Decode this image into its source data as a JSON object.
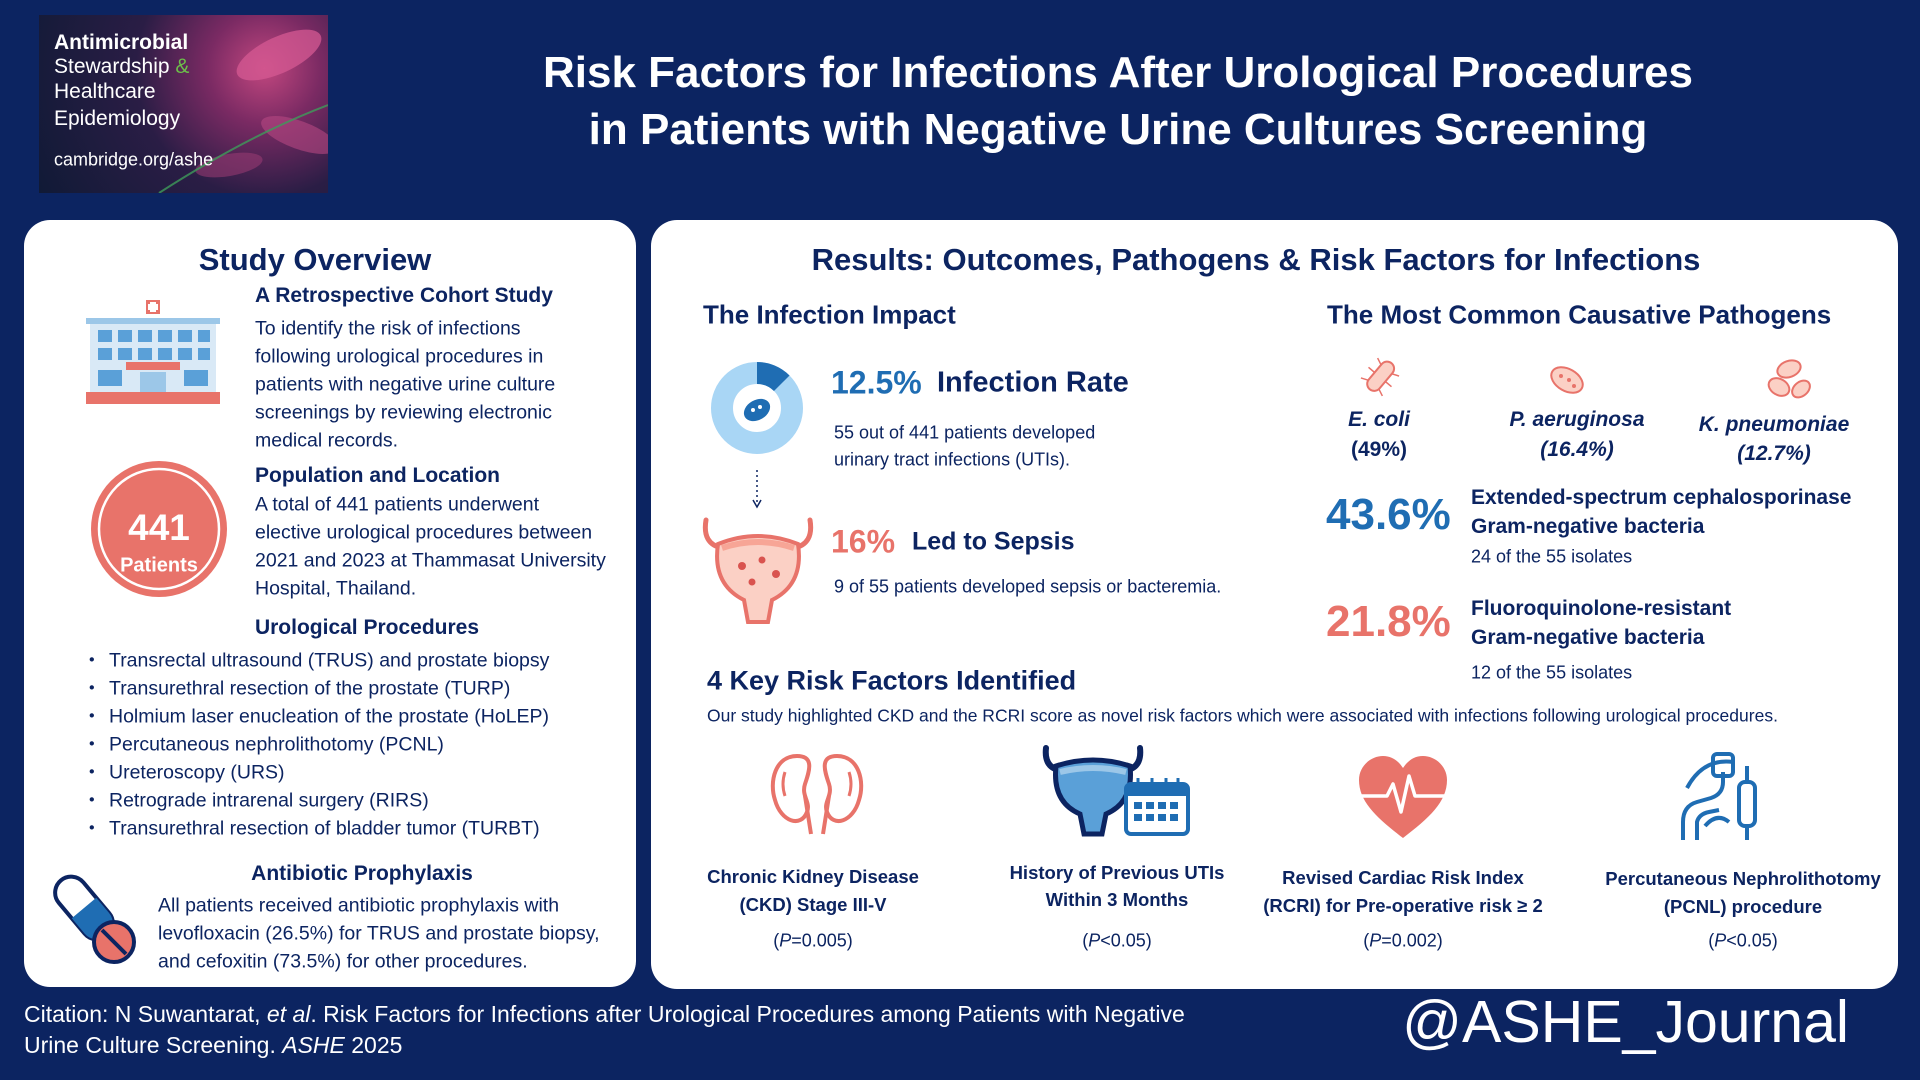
{
  "logo": {
    "lines": [
      "Antimicrobial",
      "Stewardship",
      "Healthcare",
      "Epidemiology"
    ],
    "amp": "&",
    "url": "cambridge.org/ashe"
  },
  "title": [
    "Risk Factors for Infections After Urological Procedures",
    "in Patients with Negative Urine Cultures Screening"
  ],
  "overview": {
    "heading": "Study Overview",
    "cohort": {
      "title": "A Retrospective Cohort Study",
      "lines": [
        "To identify the risk of infections",
        "following urological procedures in",
        "patients with negative urine culture",
        "screenings by reviewing electronic",
        "medical records."
      ]
    },
    "patients": {
      "count": "441",
      "label": "Patients"
    },
    "population": {
      "title": "Population and Location",
      "lines": [
        "A total of 441 patients underwent",
        "elective urological procedures between",
        "2021 and 2023 at Thammasat University",
        "Hospital, Thailand."
      ]
    },
    "procedures": {
      "title": "Urological Procedures",
      "items": [
        "Transrectal ultrasound (TRUS) and prostate biopsy",
        "Transurethral resection of the prostate (TURP)",
        "Holmium laser enucleation of the prostate (HoLEP)",
        "Percutaneous nephrolithotomy (PCNL)",
        "Ureteroscopy (URS)",
        "Retrograde intrarenal surgery (RIRS)",
        "Transurethral resection of bladder tumor (TURBT)"
      ]
    },
    "prophylaxis": {
      "title": "Antibiotic Prophylaxis",
      "lines": [
        "All patients received antibiotic prophylaxis with",
        "levofloxacin (26.5%) for TRUS and prostate biopsy,",
        "and cefoxitin (73.5%) for other procedures."
      ]
    }
  },
  "results": {
    "heading": "Results: Outcomes, Pathogens & Risk Factors for Infections",
    "impact": {
      "heading": "The Infection Impact",
      "infection": {
        "value": "12.5%",
        "label": "Infection Rate",
        "lines": [
          "55 out of 441 patients developed",
          "urinary tract infections (UTIs)."
        ]
      },
      "sepsis": {
        "value": "16%",
        "label": "Led to Sepsis",
        "text": "9 of 55 patients developed sepsis or bacteremia."
      }
    },
    "pathogens": {
      "heading": "The Most Common Causative Pathogens",
      "items": [
        {
          "name": "E. coli",
          "share": "(49%)"
        },
        {
          "name": "P. aeruginosa",
          "share": "(16.4%)"
        },
        {
          "name": "K. pneumoniae",
          "share": "(12.7%)"
        }
      ],
      "resistance": [
        {
          "value": "43.6%",
          "lines": [
            "Extended-spectrum cephalosporinase",
            "Gram-negative bacteria"
          ],
          "note": "24 of the 55 isolates"
        },
        {
          "value": "21.8%",
          "lines": [
            "Fluoroquinolone-resistant",
            "Gram-negative bacteria"
          ],
          "note": "12 of the 55 isolates"
        }
      ]
    },
    "risk_factors": {
      "heading": "4 Key Risk Factors Identified",
      "intro": "Our study highlighted CKD and the RCRI score as novel risk factors which were associated with infections following urological procedures.",
      "items": [
        {
          "lines": [
            "Chronic Kidney Disease",
            "(CKD) Stage III-V"
          ],
          "p": [
            "(",
            "P",
            "=0.005)"
          ]
        },
        {
          "lines": [
            "History of Previous UTIs",
            "Within 3 Months"
          ],
          "p": [
            "(",
            "P",
            "<0.05)"
          ]
        },
        {
          "lines": [
            "Revised Cardiac Risk Index",
            "(RCRI) for Pre-operative risk ≥ 2"
          ],
          "p": [
            "(",
            "P",
            "=0.002)"
          ]
        },
        {
          "lines": [
            "Percutaneous Nephrolithotomy",
            "(PCNL) procedure"
          ],
          "p": [
            "(",
            "P",
            "<0.05)"
          ]
        }
      ]
    }
  },
  "citation": [
    "Citation: N Suwantarat, ",
    "et al",
    ". Risk Factors for Infections after Urological Procedures among Patients with Negative",
    "Urine Culture Screening. ",
    "ASHE",
    " 2025"
  ],
  "handle": "@ASHE_Journal"
}
